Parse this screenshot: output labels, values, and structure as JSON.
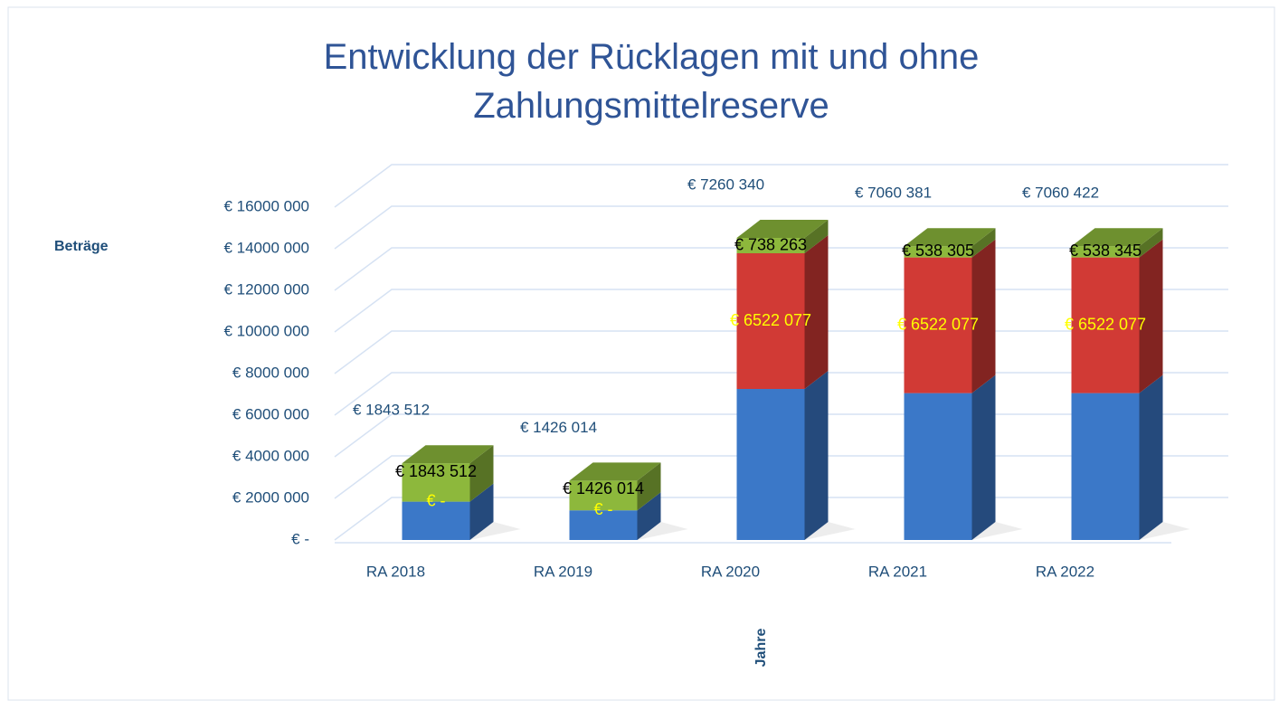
{
  "chart_data": {
    "type": "bar3d_stacked",
    "title": "Entwicklung der Rücklagen mit und ohne Zahlungsmittelreserve",
    "y_label": "Beträge",
    "x_label": "Jahre",
    "categories": [
      "RA 2018",
      "RA 2019",
      "RA 2020",
      "RA 2021",
      "RA 2022"
    ],
    "series": [
      {
        "color": "#3b78c8",
        "values": [
          1843512,
          1426014,
          7260340,
          7060381,
          7060422
        ],
        "value_labels": [
          "€ 1843 512",
          "€ 1426 014",
          "€ 7260 340",
          "€ 7060 381",
          "€ 7060 422"
        ]
      },
      {
        "color": "#d13a35",
        "values": [
          0,
          0,
          6522077,
          6522077,
          6522077
        ],
        "value_labels": [
          "€ -",
          "€ -",
          "€ 6522 077",
          "€ 6522 077",
          "€ 6522 077"
        ]
      },
      {
        "color": "#8db83c",
        "values": [
          1843512,
          1426014,
          738263,
          538305,
          538345
        ],
        "value_labels": [
          "€ 1843 512",
          "€ 1426 014",
          "€ 738 263",
          "€ 538 305",
          "€ 538 345"
        ]
      }
    ],
    "ylim": [
      0,
      16000000
    ],
    "yticks": [
      {
        "value": 0,
        "label": "€ -"
      },
      {
        "value": 2000000,
        "label": "€ 2000 000"
      },
      {
        "value": 4000000,
        "label": "€ 4000 000"
      },
      {
        "value": 6000000,
        "label": "€ 6000 000"
      },
      {
        "value": 8000000,
        "label": "€ 8000 000"
      },
      {
        "value": 10000000,
        "label": "€ 10000 000"
      },
      {
        "value": 12000000,
        "label": "€ 12000 000"
      },
      {
        "value": 14000000,
        "label": "€ 14000 000"
      },
      {
        "value": 16000000,
        "label": "€ 16000 000"
      }
    ],
    "grid": true
  }
}
